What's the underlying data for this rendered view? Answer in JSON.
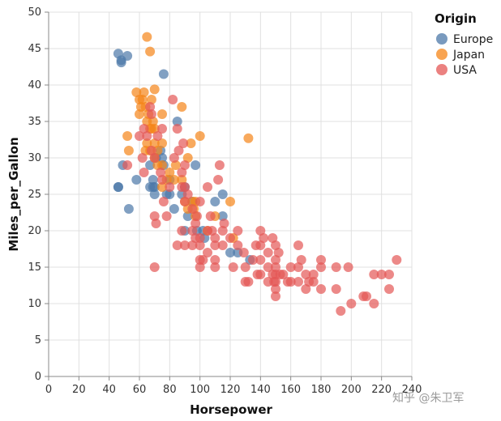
{
  "watermark": "知乎 @朱卫军",
  "chart_data": {
    "type": "scatter",
    "xlabel": "Horsepower",
    "ylabel": "Miles_per_Gallon",
    "xlim": [
      0,
      240
    ],
    "ylim": [
      0,
      50
    ],
    "x_ticks": [
      0,
      20,
      40,
      60,
      80,
      100,
      120,
      140,
      160,
      180,
      200,
      220,
      240
    ],
    "y_ticks": [
      0,
      5,
      10,
      15,
      20,
      25,
      30,
      35,
      40,
      45,
      50
    ],
    "x_tick_labels": [
      "0",
      "20",
      "40",
      "60",
      "80",
      "100",
      "120",
      "140",
      "160",
      "180",
      "200",
      "220",
      "240"
    ],
    "y_tick_labels": [
      "0",
      "5",
      "10",
      "15",
      "20",
      "25",
      "30",
      "35",
      "40",
      "45",
      "50"
    ],
    "grid": true,
    "legend": {
      "title": "Origin",
      "placement": "top-right"
    },
    "series": [
      {
        "name": "Europe",
        "color": "#4c78a8",
        "points": [
          [
            46,
            44.3
          ],
          [
            48,
            43.1
          ],
          [
            48,
            43.4
          ],
          [
            52,
            44
          ],
          [
            76,
            41.5
          ],
          [
            46,
            26
          ],
          [
            46,
            26
          ],
          [
            49,
            29
          ],
          [
            53,
            23
          ],
          [
            58,
            27
          ],
          [
            67,
            26
          ],
          [
            67,
            29
          ],
          [
            69,
            27
          ],
          [
            70,
            25
          ],
          [
            70,
            26
          ],
          [
            71,
            30
          ],
          [
            74,
            31
          ],
          [
            75,
            30
          ],
          [
            76,
            29
          ],
          [
            78,
            25
          ],
          [
            80,
            25
          ],
          [
            80,
            27
          ],
          [
            83,
            23
          ],
          [
            85,
            35
          ],
          [
            88,
            25
          ],
          [
            90,
            26
          ],
          [
            90,
            20
          ],
          [
            92,
            22
          ],
          [
            95,
            24
          ],
          [
            97,
            29
          ],
          [
            98,
            20
          ],
          [
            102,
            20
          ],
          [
            103,
            19
          ],
          [
            110,
            24
          ],
          [
            115,
            25
          ],
          [
            115,
            22
          ],
          [
            120,
            17
          ],
          [
            125,
            17
          ],
          [
            133,
            16
          ],
          [
            69,
            26
          ]
        ]
      },
      {
        "name": "Japan",
        "color": "#f58518",
        "points": [
          [
            65,
            46.6
          ],
          [
            67,
            44.6
          ],
          [
            52,
            33
          ],
          [
            53,
            31
          ],
          [
            58,
            39
          ],
          [
            60,
            38
          ],
          [
            60,
            36
          ],
          [
            61,
            37
          ],
          [
            62,
            38
          ],
          [
            63,
            39
          ],
          [
            64,
            37
          ],
          [
            65,
            35
          ],
          [
            65,
            32
          ],
          [
            66,
            36
          ],
          [
            67,
            34
          ],
          [
            67,
            31
          ],
          [
            68,
            34
          ],
          [
            69,
            35
          ],
          [
            70,
            39.4
          ],
          [
            70,
            32
          ],
          [
            70,
            30
          ],
          [
            72,
            31
          ],
          [
            72,
            29
          ],
          [
            75,
            29
          ],
          [
            75,
            26
          ],
          [
            75,
            32
          ],
          [
            78,
            27
          ],
          [
            80,
            28
          ],
          [
            83,
            27
          ],
          [
            84,
            29
          ],
          [
            88,
            27
          ],
          [
            88,
            37
          ],
          [
            90,
            24
          ],
          [
            92,
            23
          ],
          [
            92,
            30
          ],
          [
            94,
            32
          ],
          [
            95,
            24
          ],
          [
            96,
            23
          ],
          [
            97,
            24
          ],
          [
            97,
            22
          ],
          [
            100,
            33
          ],
          [
            105,
            20
          ],
          [
            110,
            22
          ],
          [
            120,
            24
          ],
          [
            122,
            19
          ],
          [
            132,
            32.7
          ],
          [
            70,
            34
          ],
          [
            68,
            38
          ],
          [
            64,
            31
          ],
          [
            75,
            36
          ]
        ]
      },
      {
        "name": "USA",
        "color": "#e45756",
        "points": [
          [
            52,
            29
          ],
          [
            60,
            33
          ],
          [
            62,
            30
          ],
          [
            63,
            34
          ],
          [
            63,
            28
          ],
          [
            65,
            33
          ],
          [
            67,
            37
          ],
          [
            68,
            36
          ],
          [
            68,
            31
          ],
          [
            70,
            30
          ],
          [
            70,
            22
          ],
          [
            70,
            15
          ],
          [
            71,
            21
          ],
          [
            72,
            33
          ],
          [
            74,
            28
          ],
          [
            75,
            27
          ],
          [
            75,
            34
          ],
          [
            76,
            24
          ],
          [
            78,
            22
          ],
          [
            80,
            26
          ],
          [
            82,
            38
          ],
          [
            83,
            30
          ],
          [
            85,
            34
          ],
          [
            85,
            18
          ],
          [
            86,
            31
          ],
          [
            88,
            26
          ],
          [
            88,
            20
          ],
          [
            88,
            28
          ],
          [
            89,
            32
          ],
          [
            90,
            29
          ],
          [
            90,
            26
          ],
          [
            90,
            24
          ],
          [
            90,
            18
          ],
          [
            92,
            25
          ],
          [
            95,
            23
          ],
          [
            95,
            20
          ],
          [
            95,
            18
          ],
          [
            97,
            19
          ],
          [
            97,
            21
          ],
          [
            98,
            22
          ],
          [
            100,
            24
          ],
          [
            100,
            18
          ],
          [
            100,
            16
          ],
          [
            100,
            15
          ],
          [
            100,
            19
          ],
          [
            102,
            16
          ],
          [
            105,
            17
          ],
          [
            105,
            20
          ],
          [
            105,
            26
          ],
          [
            107,
            22
          ],
          [
            108,
            20
          ],
          [
            110,
            18
          ],
          [
            110,
            15
          ],
          [
            110,
            19
          ],
          [
            110,
            16
          ],
          [
            112,
            27
          ],
          [
            113,
            29
          ],
          [
            115,
            20
          ],
          [
            115,
            18
          ],
          [
            116,
            21
          ],
          [
            120,
            19
          ],
          [
            122,
            15
          ],
          [
            125,
            18
          ],
          [
            125,
            20
          ],
          [
            129,
            17
          ],
          [
            130,
            15
          ],
          [
            130,
            13
          ],
          [
            132,
            13
          ],
          [
            135,
            16
          ],
          [
            137,
            18
          ],
          [
            138,
            14
          ],
          [
            140,
            18
          ],
          [
            140,
            14
          ],
          [
            140,
            20
          ],
          [
            140,
            16
          ],
          [
            142,
            19
          ],
          [
            145,
            13
          ],
          [
            145,
            17
          ],
          [
            145,
            15
          ],
          [
            148,
            14
          ],
          [
            148,
            19
          ],
          [
            149,
            13
          ],
          [
            150,
            15
          ],
          [
            150,
            14
          ],
          [
            150,
            13
          ],
          [
            150,
            11
          ],
          [
            150,
            18
          ],
          [
            150,
            16
          ],
          [
            150,
            12
          ],
          [
            152,
            17
          ],
          [
            153,
            14
          ],
          [
            155,
            14
          ],
          [
            158,
            13
          ],
          [
            160,
            15
          ],
          [
            160,
            13
          ],
          [
            165,
            13
          ],
          [
            165,
            18
          ],
          [
            167,
            16
          ],
          [
            170,
            14
          ],
          [
            170,
            12
          ],
          [
            172,
            13
          ],
          [
            175,
            14
          ],
          [
            175,
            13
          ],
          [
            180,
            16
          ],
          [
            180,
            12
          ],
          [
            180,
            15
          ],
          [
            190,
            15
          ],
          [
            190,
            12
          ],
          [
            193,
            9
          ],
          [
            198,
            15
          ],
          [
            200,
            10
          ],
          [
            208,
            11
          ],
          [
            210,
            11
          ],
          [
            215,
            10
          ],
          [
            215,
            14
          ],
          [
            220,
            14
          ],
          [
            225,
            14
          ],
          [
            225,
            12
          ],
          [
            230,
            16
          ],
          [
            165,
            15
          ]
        ]
      }
    ]
  }
}
